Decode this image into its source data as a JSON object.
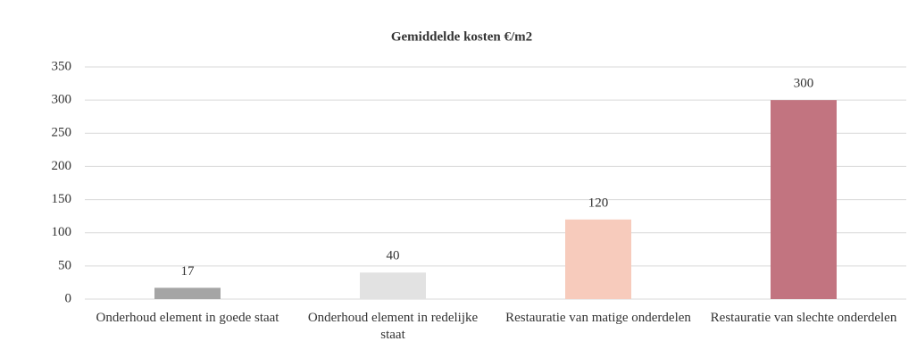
{
  "chart_data": {
    "type": "bar",
    "title": "Gemiddelde kosten €/m2",
    "categories": [
      "Onderhoud element in goede staat",
      "Onderhoud element in redelijke staat",
      "Restauratie van matige onderdelen",
      "Restauratie van slechte onderdelen"
    ],
    "values": [
      17,
      40,
      120,
      300
    ],
    "colors": [
      "#a5a5a5",
      "#e2e2e2",
      "#f7cbbc",
      "#c27480"
    ],
    "ylim": [
      0,
      350
    ],
    "yticks": [
      0,
      50,
      100,
      150,
      200,
      250,
      300,
      350
    ],
    "grid": true
  }
}
